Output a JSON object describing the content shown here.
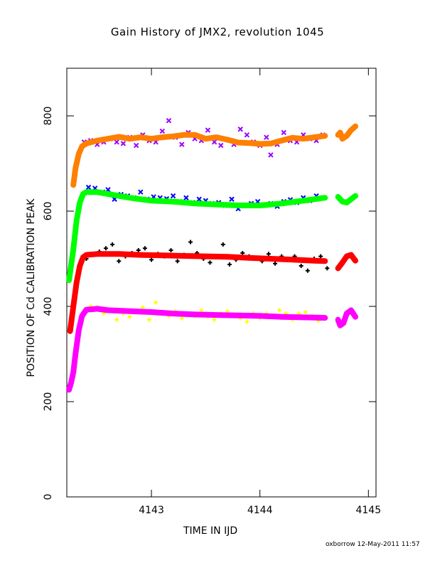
{
  "chart_data": {
    "type": "scatter",
    "title": "Gain History of JMX2, revolution 1045",
    "xlabel": "TIME IN IJD",
    "ylabel": "POSITION OF Cd CALIBRATION PEAK",
    "xlim": [
      4142.22,
      4145.07
    ],
    "ylim": [
      0,
      900
    ],
    "x_ticks": [
      4143,
      4144,
      4145
    ],
    "y_ticks": [
      0,
      200,
      400,
      600,
      800
    ],
    "grid": false,
    "legend": "none",
    "series": [
      {
        "color": "#9900ff",
        "marker": "x",
        "points": [
          [
            4142.38,
            745
          ],
          [
            4142.44,
            748
          ],
          [
            4142.5,
            740
          ],
          [
            4142.56,
            745
          ],
          [
            4142.62,
            752
          ],
          [
            4142.68,
            745
          ],
          [
            4142.74,
            742
          ],
          [
            4142.8,
            755
          ],
          [
            4142.86,
            738
          ],
          [
            4142.92,
            760
          ],
          [
            4142.98,
            748
          ],
          [
            4143.04,
            745
          ],
          [
            4143.1,
            768
          ],
          [
            4143.16,
            790
          ],
          [
            4143.22,
            755
          ],
          [
            4143.28,
            740
          ],
          [
            4143.34,
            765
          ],
          [
            4143.4,
            752
          ],
          [
            4143.46,
            748
          ],
          [
            4143.52,
            770
          ],
          [
            4143.58,
            745
          ],
          [
            4143.64,
            738
          ],
          [
            4143.7,
            750
          ],
          [
            4143.76,
            740
          ],
          [
            4143.82,
            772
          ],
          [
            4143.88,
            760
          ],
          [
            4143.94,
            745
          ],
          [
            4144.0,
            738
          ],
          [
            4144.06,
            755
          ],
          [
            4144.1,
            718
          ],
          [
            4144.16,
            740
          ],
          [
            4144.22,
            765
          ],
          [
            4144.28,
            748
          ],
          [
            4144.34,
            745
          ],
          [
            4144.4,
            760
          ],
          [
            4144.46,
            752
          ],
          [
            4144.52,
            748
          ],
          [
            4144.58,
            760
          ]
        ]
      },
      {
        "color": "#ff7f00",
        "marker": "line",
        "points": [
          [
            4142.28,
            655
          ],
          [
            4142.3,
            690
          ],
          [
            4142.33,
            720
          ],
          [
            4142.36,
            736
          ],
          [
            4142.4,
            742
          ],
          [
            4142.5,
            748
          ],
          [
            4142.6,
            752
          ],
          [
            4142.7,
            756
          ],
          [
            4142.8,
            752
          ],
          [
            4142.9,
            755
          ],
          [
            4143.0,
            752
          ],
          [
            4143.1,
            755
          ],
          [
            4143.2,
            757
          ],
          [
            4143.3,
            760
          ],
          [
            4143.4,
            760
          ],
          [
            4143.5,
            752
          ],
          [
            4143.6,
            755
          ],
          [
            4143.7,
            750
          ],
          [
            4143.8,
            744
          ],
          [
            4143.9,
            743
          ],
          [
            4144.0,
            741
          ],
          [
            4144.1,
            742
          ],
          [
            4144.2,
            748
          ],
          [
            4144.3,
            754
          ],
          [
            4144.4,
            752
          ],
          [
            4144.5,
            755
          ],
          [
            4144.6,
            758
          ]
        ]
      },
      {
        "color": "#ff7f00",
        "marker": "line",
        "points": [
          [
            4144.72,
            760
          ],
          [
            4144.74,
            765
          ],
          [
            4144.76,
            752
          ],
          [
            4144.8,
            758
          ],
          [
            4144.84,
            770
          ],
          [
            4144.88,
            778
          ]
        ]
      },
      {
        "color": "#0000ff",
        "marker": "x",
        "points": [
          [
            4142.42,
            650
          ],
          [
            4142.48,
            648
          ],
          [
            4142.55,
            640
          ],
          [
            4142.6,
            645
          ],
          [
            4142.66,
            625
          ],
          [
            4142.72,
            635
          ],
          [
            4142.78,
            632
          ],
          [
            4142.84,
            628
          ],
          [
            4142.9,
            640
          ],
          [
            4142.96,
            625
          ],
          [
            4143.02,
            630
          ],
          [
            4143.08,
            628
          ],
          [
            4143.14,
            626
          ],
          [
            4143.2,
            632
          ],
          [
            4143.26,
            620
          ],
          [
            4143.32,
            628
          ],
          [
            4143.38,
            618
          ],
          [
            4143.44,
            625
          ],
          [
            4143.5,
            622
          ],
          [
            4143.56,
            616
          ],
          [
            4143.62,
            618
          ],
          [
            4143.68,
            612
          ],
          [
            4143.74,
            625
          ],
          [
            4143.8,
            605
          ],
          [
            4143.86,
            612
          ],
          [
            4143.92,
            616
          ],
          [
            4143.98,
            620
          ],
          [
            4144.04,
            612
          ],
          [
            4144.1,
            616
          ],
          [
            4144.16,
            610
          ],
          [
            4144.22,
            620
          ],
          [
            4144.28,
            624
          ],
          [
            4144.34,
            618
          ],
          [
            4144.4,
            628
          ],
          [
            4144.46,
            622
          ],
          [
            4144.52,
            632
          ],
          [
            4144.58,
            628
          ]
        ]
      },
      {
        "color": "#00ff00",
        "marker": "line",
        "points": [
          [
            4142.24,
            455
          ],
          [
            4142.28,
            520
          ],
          [
            4142.31,
            580
          ],
          [
            4142.34,
            618
          ],
          [
            4142.37,
            636
          ],
          [
            4142.4,
            640
          ],
          [
            4142.5,
            640
          ],
          [
            4142.6,
            636
          ],
          [
            4142.7,
            632
          ],
          [
            4142.8,
            628
          ],
          [
            4142.9,
            625
          ],
          [
            4143.0,
            622
          ],
          [
            4143.2,
            620
          ],
          [
            4143.4,
            616
          ],
          [
            4143.6,
            614
          ],
          [
            4143.8,
            612
          ],
          [
            4144.0,
            612
          ],
          [
            4144.2,
            616
          ],
          [
            4144.4,
            622
          ],
          [
            4144.6,
            628
          ]
        ]
      },
      {
        "color": "#00ff00",
        "marker": "line",
        "points": [
          [
            4144.72,
            630
          ],
          [
            4144.76,
            620
          ],
          [
            4144.8,
            618
          ],
          [
            4144.84,
            625
          ],
          [
            4144.88,
            632
          ]
        ]
      },
      {
        "color": "#000000",
        "marker": "plus",
        "points": [
          [
            4142.4,
            500
          ],
          [
            4142.46,
            510
          ],
          [
            4142.52,
            515
          ],
          [
            4142.58,
            522
          ],
          [
            4142.64,
            530
          ],
          [
            4142.7,
            495
          ],
          [
            4142.76,
            505
          ],
          [
            4142.82,
            512
          ],
          [
            4142.88,
            518
          ],
          [
            4142.94,
            522
          ],
          [
            4143.0,
            498
          ],
          [
            4143.06,
            510
          ],
          [
            4143.12,
            505
          ],
          [
            4143.18,
            518
          ],
          [
            4143.24,
            495
          ],
          [
            4143.3,
            508
          ],
          [
            4143.36,
            535
          ],
          [
            4143.42,
            512
          ],
          [
            4143.48,
            500
          ],
          [
            4143.54,
            492
          ],
          [
            4143.6,
            505
          ],
          [
            4143.66,
            530
          ],
          [
            4143.72,
            488
          ],
          [
            4143.78,
            498
          ],
          [
            4143.84,
            512
          ],
          [
            4143.9,
            505
          ],
          [
            4143.96,
            500
          ],
          [
            4144.02,
            495
          ],
          [
            4144.08,
            510
          ],
          [
            4144.14,
            490
          ],
          [
            4144.2,
            505
          ],
          [
            4144.26,
            500
          ],
          [
            4144.32,
            505
          ],
          [
            4144.38,
            485
          ],
          [
            4144.44,
            475
          ],
          [
            4144.5,
            500
          ],
          [
            4144.56,
            505
          ],
          [
            4144.62,
            480
          ]
        ]
      },
      {
        "color": "#ff0000",
        "marker": "line",
        "points": [
          [
            4142.25,
            348
          ],
          [
            4142.28,
            400
          ],
          [
            4142.31,
            450
          ],
          [
            4142.34,
            485
          ],
          [
            4142.37,
            503
          ],
          [
            4142.4,
            508
          ],
          [
            4142.5,
            510
          ],
          [
            4142.7,
            510
          ],
          [
            4142.9,
            508
          ],
          [
            4143.1,
            507
          ],
          [
            4143.3,
            506
          ],
          [
            4143.5,
            505
          ],
          [
            4143.7,
            504
          ],
          [
            4143.9,
            502
          ],
          [
            4144.1,
            500
          ],
          [
            4144.3,
            498
          ],
          [
            4144.5,
            496
          ],
          [
            4144.6,
            495
          ]
        ]
      },
      {
        "color": "#ff0000",
        "marker": "line",
        "points": [
          [
            4144.72,
            480
          ],
          [
            4144.76,
            492
          ],
          [
            4144.8,
            505
          ],
          [
            4144.84,
            508
          ],
          [
            4144.88,
            496
          ]
        ]
      },
      {
        "color": "#ffff00",
        "marker": "plus",
        "points": [
          [
            4142.44,
            400
          ],
          [
            4142.5,
            398
          ],
          [
            4142.56,
            385
          ],
          [
            4142.62,
            392
          ],
          [
            4142.68,
            372
          ],
          [
            4142.74,
            385
          ],
          [
            4142.8,
            378
          ],
          [
            4142.86,
            390
          ],
          [
            4142.92,
            398
          ],
          [
            4142.98,
            372
          ],
          [
            4143.04,
            408
          ],
          [
            4143.1,
            385
          ],
          [
            4143.16,
            380
          ],
          [
            4143.22,
            390
          ],
          [
            4143.28,
            375
          ],
          [
            4143.34,
            385
          ],
          [
            4143.4,
            380
          ],
          [
            4143.46,
            392
          ],
          [
            4143.52,
            378
          ],
          [
            4143.58,
            372
          ],
          [
            4143.64,
            385
          ],
          [
            4143.7,
            390
          ],
          [
            4143.76,
            380
          ],
          [
            4143.82,
            375
          ],
          [
            4143.88,
            368
          ],
          [
            4143.94,
            385
          ],
          [
            4144.0,
            375
          ],
          [
            4144.06,
            385
          ],
          [
            4144.12,
            378
          ],
          [
            4144.18,
            392
          ],
          [
            4144.24,
            385
          ],
          [
            4144.3,
            372
          ],
          [
            4144.36,
            385
          ],
          [
            4144.42,
            388
          ],
          [
            4144.48,
            380
          ],
          [
            4144.54,
            370
          ],
          [
            4144.6,
            378
          ]
        ]
      },
      {
        "color": "#ff00ff",
        "marker": "line",
        "points": [
          [
            4142.24,
            225
          ],
          [
            4142.26,
            240
          ],
          [
            4142.28,
            262
          ],
          [
            4142.3,
            300
          ],
          [
            4142.33,
            350
          ],
          [
            4142.36,
            380
          ],
          [
            4142.4,
            393
          ],
          [
            4142.5,
            395
          ],
          [
            4142.6,
            392
          ],
          [
            4142.8,
            390
          ],
          [
            4143.0,
            388
          ],
          [
            4143.2,
            385
          ],
          [
            4143.4,
            383
          ],
          [
            4143.6,
            382
          ],
          [
            4143.8,
            381
          ],
          [
            4144.0,
            380
          ],
          [
            4144.2,
            378
          ],
          [
            4144.4,
            377
          ],
          [
            4144.6,
            376
          ]
        ]
      },
      {
        "color": "#ff00ff",
        "marker": "line",
        "points": [
          [
            4144.72,
            372
          ],
          [
            4144.74,
            360
          ],
          [
            4144.77,
            365
          ],
          [
            4144.8,
            385
          ],
          [
            4144.84,
            392
          ],
          [
            4144.88,
            378
          ]
        ]
      }
    ]
  },
  "credit": "oxborrow 12-May-2011 11:57"
}
